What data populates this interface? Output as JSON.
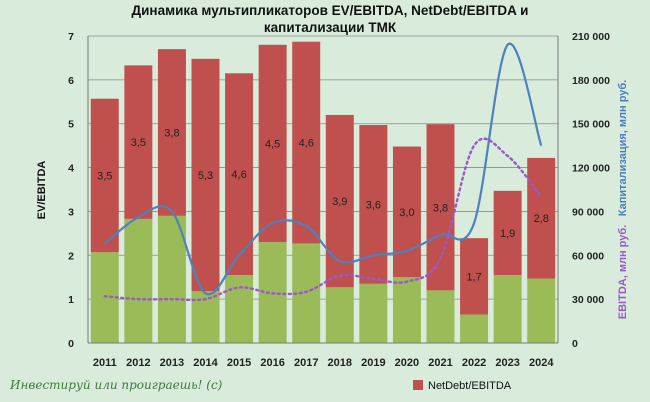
{
  "chart_data": {
    "type": "bar",
    "title_lines": [
      "Динамика мультипликаторов EV/EBITDA, NetDebt/EBITDA и",
      "капитализации ТМК"
    ],
    "categories": [
      "2011",
      "2012",
      "2013",
      "2014",
      "2015",
      "2016",
      "2017",
      "2018",
      "2019",
      "2020",
      "2021",
      "2022",
      "2023",
      "2024"
    ],
    "ylabel_left": "EV/EBITDA",
    "ylabel_right": "Капитализация,  млн руб.",
    "ylabel_right2": "EBITDA, млн руб.",
    "left_axis": {
      "min": 0,
      "max": 7,
      "step": 1
    },
    "right_axis": {
      "min": 0,
      "max": 210000,
      "step": 30000,
      "tick_labels": [
        "0",
        "30 000",
        "60 000",
        "90 000",
        "120 000",
        "150 000",
        "180 000",
        "210 000"
      ]
    },
    "stacked_total_ev_ebitda": [
      5.57,
      6.33,
      6.7,
      6.48,
      6.15,
      6.8,
      6.87,
      5.2,
      4.97,
      4.48,
      4.99,
      2.39,
      3.47,
      4.22
    ],
    "series": [
      {
        "name": "",
        "color": "#9bbb59",
        "values": [
          2.07,
          2.83,
          2.9,
          1.18,
          1.55,
          2.3,
          2.27,
          1.27,
          1.35,
          1.5,
          1.2,
          0.65,
          1.55,
          1.47
        ]
      },
      {
        "name": "NetDebt/EBITDA",
        "color": "#c0504d",
        "values": [
          3.5,
          3.5,
          3.8,
          5.3,
          4.6,
          4.5,
          4.6,
          3.9,
          3.6,
          3.0,
          3.8,
          1.7,
          1.9,
          2.8
        ],
        "labels": [
          "3,5",
          "3,5",
          "3,8",
          "5,3",
          "4,6",
          "4,5",
          "4,6",
          "3,9",
          "3,6",
          "3,0",
          "3,8",
          "1,7",
          "1,9",
          "2,8"
        ]
      },
      {
        "name": "",
        "type": "line",
        "axis": "right",
        "color": "#4f81bd",
        "values": [
          68000,
          86000,
          90000,
          34000,
          60000,
          82000,
          80000,
          56000,
          60000,
          63000,
          74000,
          82000,
          204000,
          135000
        ]
      },
      {
        "name": "",
        "type": "line",
        "axis": "right",
        "dashed": true,
        "color": "#9b59c8",
        "values": [
          32000,
          30000,
          30000,
          30000,
          38000,
          34000,
          35000,
          46000,
          44000,
          42000,
          58000,
          135000,
          128000,
          100000
        ]
      }
    ],
    "legend": {
      "position": "bottom",
      "entries": [
        "NetDebt/EBITDA"
      ]
    },
    "watermark": "Инвестируй или проиграешь! (с)"
  }
}
